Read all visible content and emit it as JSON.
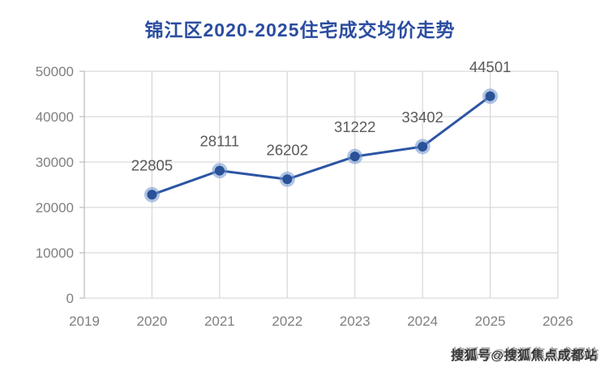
{
  "chart_data": {
    "type": "line",
    "title": "锦江区2020-2025住宅成交均价走势",
    "x": [
      2020,
      2021,
      2022,
      2023,
      2024,
      2025
    ],
    "values": [
      22805,
      28111,
      26202,
      31222,
      33402,
      44501
    ],
    "data_labels": [
      22805,
      28111,
      26202,
      31222,
      33402,
      44501
    ],
    "xlabel": "",
    "ylabel": "",
    "xlim": [
      2019,
      2026
    ],
    "ylim": [
      0,
      50000
    ],
    "x_ticks": [
      2019,
      2020,
      2021,
      2022,
      2023,
      2024,
      2025,
      2026
    ],
    "y_ticks": [
      0,
      10000,
      20000,
      30000,
      40000,
      50000
    ],
    "grid": true,
    "legend": false,
    "colors": {
      "title": "#2b4da0",
      "line": "#2c55a5",
      "marker": "#2a5298",
      "marker_halo": "#6f93ce",
      "grid": "#d9d9d9",
      "axis": "#bfbfbf",
      "tick_label": "#7f7f7f",
      "data_label": "#595959",
      "background": "#ffffff"
    }
  },
  "watermark": {
    "text": "搜狐号@搜狐焦点成都站"
  }
}
